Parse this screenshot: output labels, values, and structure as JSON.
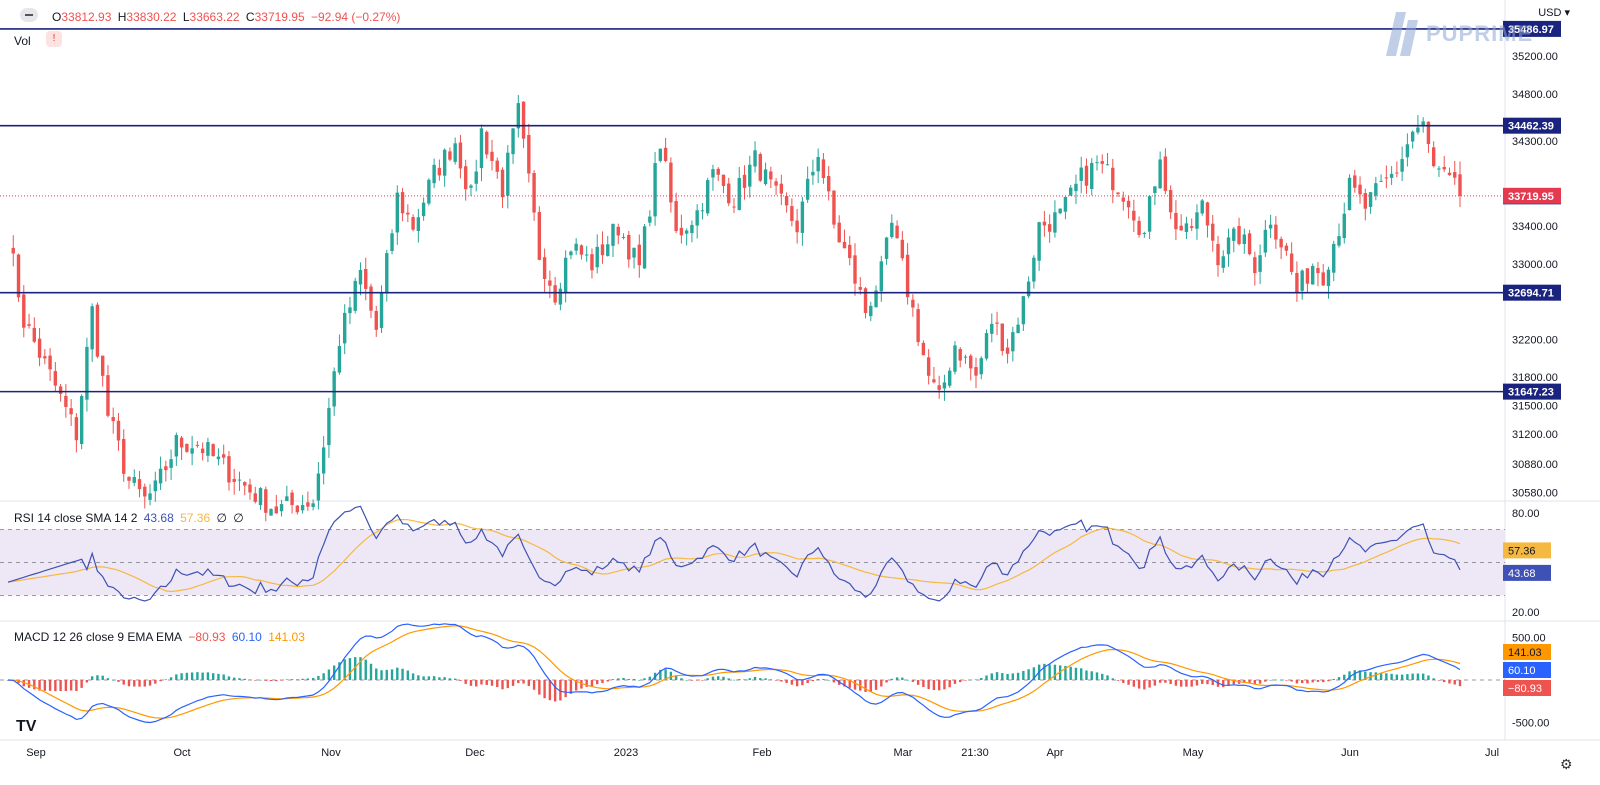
{
  "ohlc_legend": {
    "open_label": "O",
    "open": "33812.93",
    "high_label": "H",
    "high": "33830.22",
    "low_label": "L",
    "low": "33663.22",
    "close_label": "C",
    "close": "33719.95",
    "change": "−92.94 (−0.27%)"
  },
  "currency": "USD",
  "vol_label": "Vol",
  "vol_badge": "!",
  "watermark": "PUPRIME",
  "tv_logo": "TV",
  "rsi_legend": {
    "label": "RSI 14 close SMA 14 2",
    "rsi": "43.68",
    "sma": "57.36",
    "f1": "∅",
    "f2": "∅"
  },
  "macd_legend": {
    "label": "MACD 12 26 close 9 EMA EMA",
    "hist": "−80.93",
    "macd": "60.10",
    "signal": "141.03"
  },
  "colors": {
    "up": "#26a69a",
    "down": "#ef5350",
    "level": "#1a237e",
    "price_line": "#e53950",
    "rsi": "#3f51b5",
    "rsi_sma": "#f5b942",
    "macd": "#2962ff",
    "signal": "#ff9800",
    "rsi_band": "#ede7f6"
  },
  "chart_data": [
    {
      "type": "candlestick",
      "title": "",
      "ylim": [
        30500,
        35560
      ],
      "yticks": [
        35200,
        34800,
        34300,
        33400,
        33000,
        32200,
        31800,
        31500,
        31200,
        30880,
        30580
      ],
      "x_ticks": [
        "Sep",
        "Oct",
        "Nov",
        "Dec",
        "2023",
        "Feb",
        "Mar",
        "21:30",
        "Apr",
        "May",
        "Jun",
        "Jul"
      ],
      "levels": [
        {
          "value": 35486.97,
          "label": "35486.97"
        },
        {
          "value": 34462.39,
          "label": "34462.39"
        },
        {
          "value": 32694.71,
          "label": "32694.71"
        },
        {
          "value": 31647.23,
          "label": "31647.23"
        },
        {
          "value": 33714.36,
          "label": "33714.36"
        }
      ],
      "last_price": {
        "value": 33719.95,
        "label": "33719.95"
      },
      "waypoints": [
        [
          0,
          33300
        ],
        [
          3,
          32400
        ],
        [
          9,
          31700
        ],
        [
          13,
          31200
        ],
        [
          16,
          32500
        ],
        [
          19,
          31400
        ],
        [
          23,
          30700
        ],
        [
          26,
          30500
        ],
        [
          28,
          30600
        ],
        [
          32,
          31100
        ],
        [
          36,
          31100
        ],
        [
          40,
          30900
        ],
        [
          46,
          30600
        ],
        [
          51,
          30400
        ],
        [
          58,
          30500
        ],
        [
          60,
          31100
        ],
        [
          63,
          32200
        ],
        [
          67,
          32900
        ],
        [
          70,
          32300
        ],
        [
          74,
          33700
        ],
        [
          77,
          33400
        ],
        [
          81,
          33950
        ],
        [
          85,
          34300
        ],
        [
          88,
          33700
        ],
        [
          90,
          34400
        ],
        [
          94,
          33800
        ],
        [
          97,
          34600
        ],
        [
          101,
          33100
        ],
        [
          104,
          32700
        ],
        [
          107,
          33200
        ],
        [
          111,
          33000
        ],
        [
          116,
          33400
        ],
        [
          120,
          32950
        ],
        [
          124,
          34300
        ],
        [
          127,
          33300
        ],
        [
          131,
          33550
        ],
        [
          134,
          33950
        ],
        [
          138,
          33700
        ],
        [
          142,
          34100
        ],
        [
          146,
          33700
        ],
        [
          150,
          33400
        ],
        [
          154,
          34200
        ],
        [
          157,
          33400
        ],
        [
          160,
          33000
        ],
        [
          163,
          32500
        ],
        [
          166,
          32900
        ],
        [
          168,
          33400
        ],
        [
          172,
          32500
        ],
        [
          175,
          31800
        ],
        [
          177,
          31550
        ],
        [
          180,
          32150
        ],
        [
          184,
          31800
        ],
        [
          187,
          32400
        ],
        [
          190,
          32100
        ],
        [
          193,
          32600
        ],
        [
          196,
          33400
        ],
        [
          200,
          33500
        ],
        [
          204,
          33900
        ],
        [
          207,
          34050
        ],
        [
          210,
          33900
        ],
        [
          213,
          33700
        ],
        [
          216,
          33300
        ],
        [
          219,
          34200
        ],
        [
          221,
          33500
        ],
        [
          224,
          33300
        ],
        [
          227,
          33600
        ],
        [
          230,
          33100
        ],
        [
          234,
          33300
        ],
        [
          237,
          33000
        ],
        [
          240,
          33500
        ],
        [
          243,
          33100
        ],
        [
          245,
          32700
        ],
        [
          248,
          33000
        ],
        [
          250,
          32900
        ],
        [
          253,
          33400
        ],
        [
          255,
          33800
        ],
        [
          258,
          33600
        ],
        [
          261,
          33800
        ],
        [
          264,
          34000
        ],
        [
          267,
          34400
        ],
        [
          269,
          34450
        ],
        [
          271,
          34000
        ],
        [
          274,
          33850
        ],
        [
          276,
          33720
        ]
      ],
      "n_candles": 277
    },
    {
      "type": "line",
      "title": "RSI",
      "ylim": [
        15,
        85
      ],
      "yticks": [
        80.0,
        20.0
      ],
      "band": [
        70,
        30
      ],
      "series": [
        {
          "name": "RSI",
          "color_key": "rsi"
        },
        {
          "name": "SMA",
          "color_key": "rsi_sma"
        }
      ],
      "last": {
        "rsi": 43.68,
        "sma": 57.36
      }
    },
    {
      "type": "line+bar",
      "title": "MACD",
      "ylim": [
        -650,
        650
      ],
      "yticks": [
        500.0,
        -500.0
      ],
      "series": [
        {
          "name": "MACD",
          "color_key": "macd"
        },
        {
          "name": "Signal",
          "color_key": "signal"
        },
        {
          "name": "Histogram"
        }
      ],
      "last": {
        "macd": 60.1,
        "signal": 141.03,
        "hist": -80.93
      }
    }
  ]
}
